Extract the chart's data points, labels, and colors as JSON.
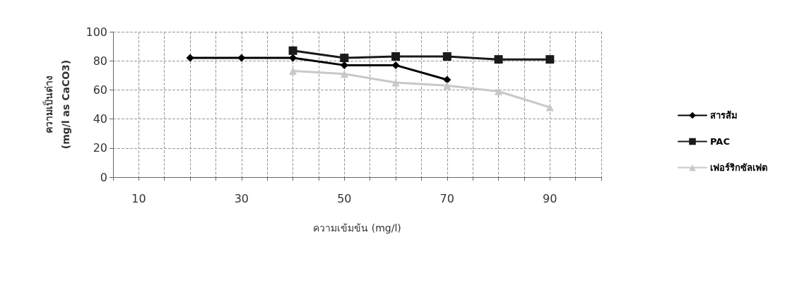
{
  "chart_data": {
    "type": "line",
    "xlabel": "ความเข้มข้น (mg/l)",
    "ylabel": "ความเป็นด่าง\n(mg/l as CaCO3)",
    "series": [
      {
        "name": "สารส้ม",
        "color": "#000000",
        "marker": "diamond",
        "x": [
          20,
          30,
          40,
          50,
          60,
          70
        ],
        "values": [
          82,
          82,
          82,
          77,
          77,
          67
        ]
      },
      {
        "name": "PAC",
        "color": "#1a1a1a",
        "marker": "square",
        "x": [
          40,
          50,
          60,
          70,
          80,
          90
        ],
        "values": [
          87,
          82,
          83,
          83,
          81,
          81
        ]
      },
      {
        "name": "เฟอร์ริกซัลเฟต",
        "color": "#c8c8c8",
        "marker": "triangle",
        "x": [
          40,
          50,
          60,
          70,
          80,
          90
        ],
        "values": [
          73,
          71,
          65,
          63,
          59,
          48
        ]
      }
    ],
    "xlim": [
      5,
      100
    ],
    "xticks": [
      {
        "value": 5,
        "label": null
      },
      {
        "value": 10,
        "label": "10"
      },
      {
        "value": 15,
        "label": null
      },
      {
        "value": 20,
        "label": null
      },
      {
        "value": 25,
        "label": null
      },
      {
        "value": 30,
        "label": "30"
      },
      {
        "value": 35,
        "label": null
      },
      {
        "value": 40,
        "label": null
      },
      {
        "value": 45,
        "label": null
      },
      {
        "value": 50,
        "label": "50"
      },
      {
        "value": 55,
        "label": null
      },
      {
        "value": 60,
        "label": null
      },
      {
        "value": 65,
        "label": null
      },
      {
        "value": 70,
        "label": "70"
      },
      {
        "value": 75,
        "label": null
      },
      {
        "value": 80,
        "label": null
      },
      {
        "value": 85,
        "label": null
      },
      {
        "value": 90,
        "label": "90"
      },
      {
        "value": 95,
        "label": null
      },
      {
        "value": 100,
        "label": null
      }
    ],
    "ylim": [
      0,
      100
    ],
    "yticks": [
      0,
      20,
      40,
      60,
      80,
      100
    ],
    "grid": true,
    "legend": "right",
    "line_style": "solid"
  }
}
